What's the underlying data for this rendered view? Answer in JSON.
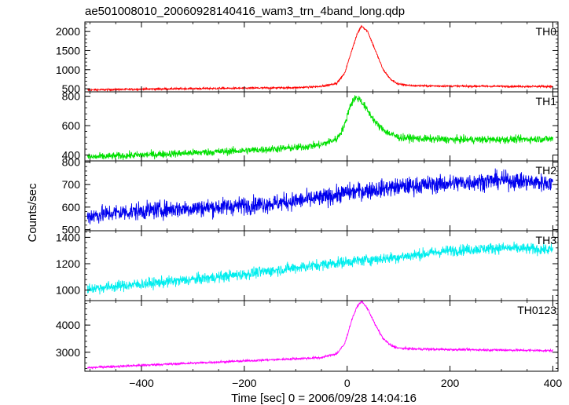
{
  "chart_data": {
    "type": "line",
    "title": "ae501008010_20060928140416_wam3_trn_4band_long.qdp",
    "ylabel": "Counts/sec",
    "xlabel": "Time [sec] 0 = 2006/09/28 14:04:16",
    "xlim": [
      -510,
      410
    ],
    "xticks": [
      -400,
      -200,
      0,
      200,
      400
    ],
    "xtick_labels": [
      "−400",
      "−200",
      "0",
      "200",
      "400"
    ],
    "grid": false,
    "panels": [
      {
        "name": "TH0",
        "color": "#ff0000",
        "ylim": [
          420,
          2250
        ],
        "yticks": [
          500,
          1000,
          1500,
          2000
        ],
        "noise": 18,
        "series": {
          "x": [
            -505,
            -400,
            -300,
            -200,
            -100,
            -50,
            -20,
            -5,
            10,
            20,
            28,
            40,
            55,
            70,
            85,
            100,
            130,
            200,
            300,
            400
          ],
          "y": [
            470,
            490,
            505,
            515,
            530,
            560,
            650,
            900,
            1550,
            1950,
            2150,
            2000,
            1500,
            1000,
            740,
            620,
            580,
            570,
            565,
            560
          ]
        }
      },
      {
        "name": "TH1",
        "color": "#00e000",
        "ylim": [
          360,
          830
        ],
        "yticks": [
          400,
          600,
          800
        ],
        "noise": 18,
        "series": {
          "x": [
            -505,
            -400,
            -300,
            -200,
            -100,
            -50,
            -20,
            -5,
            5,
            15,
            25,
            40,
            60,
            80,
            100,
            150,
            200,
            300,
            400
          ],
          "y": [
            385,
            400,
            415,
            430,
            450,
            470,
            510,
            600,
            730,
            790,
            780,
            700,
            600,
            550,
            520,
            510,
            505,
            505,
            510
          ]
        }
      },
      {
        "name": "TH2",
        "color": "#0000ee",
        "ylim": [
          495,
          805
        ],
        "yticks": [
          500,
          600,
          700,
          800
        ],
        "noise": 28,
        "series": {
          "x": [
            -505,
            -450,
            -350,
            -250,
            -150,
            -50,
            0,
            100,
            200,
            300,
            400
          ],
          "y": [
            560,
            575,
            590,
            600,
            615,
            640,
            665,
            690,
            705,
            720,
            705
          ]
        }
      },
      {
        "name": "TH3",
        "color": "#00eeee",
        "ylim": [
          920,
          1450
        ],
        "yticks": [
          1000,
          1200,
          1400
        ],
        "noise": 30,
        "series": {
          "x": [
            -505,
            -400,
            -300,
            -200,
            -100,
            0,
            100,
            200,
            300,
            400
          ],
          "y": [
            1010,
            1045,
            1080,
            1120,
            1170,
            1215,
            1250,
            1300,
            1320,
            1305
          ]
        }
      },
      {
        "name": "TH0123",
        "color": "#ff00ff",
        "ylim": [
          2300,
          4900
        ],
        "yticks": [
          3000,
          4000
        ],
        "noise": 30,
        "series": {
          "x": [
            -505,
            -400,
            -300,
            -200,
            -100,
            -50,
            -20,
            -5,
            10,
            20,
            28,
            40,
            55,
            70,
            85,
            100,
            130,
            200,
            300,
            400
          ],
          "y": [
            2430,
            2520,
            2600,
            2680,
            2760,
            2800,
            2950,
            3300,
            4250,
            4700,
            4880,
            4600,
            4000,
            3500,
            3250,
            3150,
            3120,
            3100,
            3080,
            3060
          ]
        }
      }
    ]
  }
}
